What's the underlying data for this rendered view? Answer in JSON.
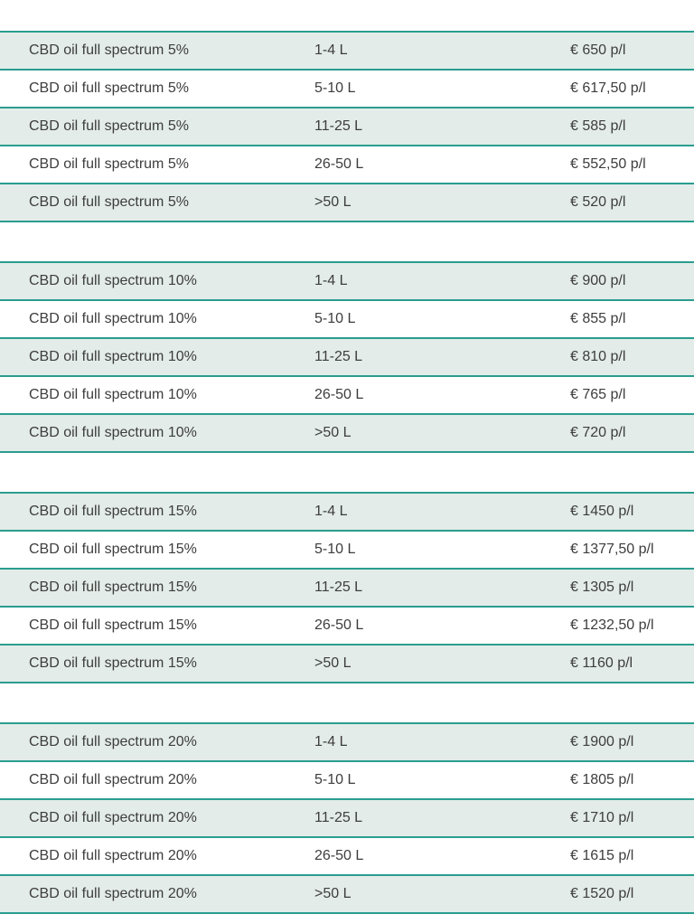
{
  "price_groups": [
    {
      "rows": [
        {
          "product": "CBD oil full spectrum 5%",
          "quantity": "1-4 L",
          "price": "€ 650 p/l"
        },
        {
          "product": "CBD oil full spectrum 5%",
          "quantity": "5-10 L",
          "price": "€ 617,50 p/l"
        },
        {
          "product": "CBD oil full spectrum 5%",
          "quantity": "11-25 L",
          "price": "€ 585 p/l"
        },
        {
          "product": "CBD oil full spectrum 5%",
          "quantity": "26-50 L",
          "price": "€ 552,50 p/l"
        },
        {
          "product": "CBD oil full spectrum 5%",
          "quantity": ">50 L",
          "price": "€  520 p/l"
        }
      ]
    },
    {
      "rows": [
        {
          "product": "CBD oil full spectrum 10%",
          "quantity": "1-4 L",
          "price": "€ 900 p/l"
        },
        {
          "product": "CBD oil full spectrum 10%",
          "quantity": "5-10 L",
          "price": "€ 855 p/l"
        },
        {
          "product": "CBD oil full spectrum 10%",
          "quantity": "11-25 L",
          "price": "€ 810 p/l"
        },
        {
          "product": "CBD oil full spectrum 10%",
          "quantity": "26-50 L",
          "price": "€ 765 p/l"
        },
        {
          "product": "CBD oil full spectrum 10%",
          "quantity": ">50 L",
          "price": "€  720 p/l"
        }
      ]
    },
    {
      "rows": [
        {
          "product": "CBD oil full spectrum 15%",
          "quantity": "1-4 L",
          "price": "€ 1450 p/l"
        },
        {
          "product": "CBD oil full spectrum 15%",
          "quantity": "5-10 L",
          "price": "€ 1377,50 p/l"
        },
        {
          "product": "CBD oil full spectrum 15%",
          "quantity": "11-25 L",
          "price": "€ 1305 p/l"
        },
        {
          "product": "CBD oil full spectrum 15%",
          "quantity": "26-50 L",
          "price": "€ 1232,50 p/l"
        },
        {
          "product": "CBD oil full spectrum 15%",
          "quantity": ">50 L",
          "price": "€  1160 p/l"
        }
      ]
    },
    {
      "rows": [
        {
          "product": "CBD oil full spectrum 20%",
          "quantity": "1-4 L",
          "price": "€ 1900 p/l"
        },
        {
          "product": "CBD oil full spectrum 20%",
          "quantity": "5-10 L",
          "price": "€ 1805 p/l"
        },
        {
          "product": "CBD oil full spectrum 20%",
          "quantity": "11-25 L",
          "price": "€ 1710 p/l"
        },
        {
          "product": "CBD oil full spectrum 20%",
          "quantity": "26-50 L",
          "price": "€ 1615 p/l"
        },
        {
          "product": "CBD oil full spectrum 20%",
          "quantity": ">50 L",
          "price": "€ 1520 p/l"
        }
      ]
    }
  ],
  "colors": {
    "rule": "#2a9d8f",
    "shaded_row": "#e3ece8",
    "text": "#3d3d3d"
  }
}
